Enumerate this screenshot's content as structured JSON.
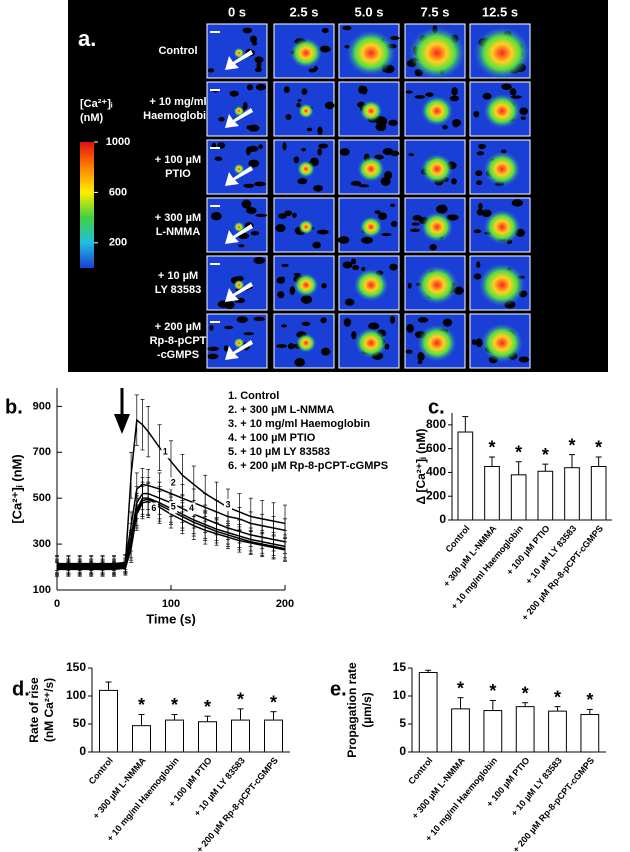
{
  "panel_a": {
    "label": "a.",
    "times": [
      "0 s",
      "2.5 s",
      "5.0 s",
      "7.5 s",
      "12.5 s"
    ],
    "rows": [
      [
        "Control"
      ],
      [
        "+ 10 mg/ml",
        "Haemoglobin"
      ],
      [
        "+ 100 µM",
        "PTIO"
      ],
      [
        "+ 300 µM",
        "L-NMMA"
      ],
      [
        "+ 10 µM",
        "LY 83583"
      ],
      [
        "+ 200 µM",
        "Rp-8-pCPT",
        "-cGMPS"
      ]
    ],
    "colorbar": {
      "title": [
        "[Ca²⁺]ᵢ",
        "(nM)"
      ],
      "lim": [
        0,
        1000
      ],
      "ticks": [
        1000,
        600,
        200
      ]
    }
  },
  "chart_data": [
    {
      "type": "line",
      "label": "b.",
      "ylabel": "[Ca²⁺]ᵢ (nM)",
      "xlabel": "Time (s)",
      "xlim": [
        0,
        200
      ],
      "xticks": [
        0,
        100,
        200
      ],
      "ylim": [
        100,
        980
      ],
      "yticks": [
        100,
        300,
        500,
        700,
        900
      ],
      "x": [
        0,
        10,
        20,
        30,
        40,
        50,
        60,
        65,
        70,
        75,
        80,
        90,
        100,
        110,
        120,
        130,
        140,
        150,
        160,
        170,
        180,
        190,
        200
      ],
      "series": [
        {
          "name": "1. Control",
          "color": "#000000",
          "values": [
            210,
            210,
            210,
            210,
            210,
            210,
            215,
            600,
            840,
            820,
            790,
            720,
            660,
            600,
            560,
            520,
            490,
            460,
            440,
            420,
            410,
            400,
            390
          ],
          "errors": [
            40,
            40,
            40,
            40,
            40,
            40,
            40,
            100,
            110,
            110,
            110,
            100,
            90,
            90,
            80,
            80,
            80,
            80,
            80,
            80,
            80,
            80,
            80
          ]
        },
        {
          "name": "2. + 300 µM L-NMMA",
          "color": "#000000",
          "values": [
            215,
            215,
            215,
            215,
            215,
            215,
            220,
            380,
            540,
            560,
            555,
            540,
            520,
            500,
            480,
            460,
            440,
            420,
            410,
            390,
            380,
            370,
            360
          ],
          "errors": [
            30,
            30,
            30,
            30,
            30,
            30,
            30,
            60,
            70,
            70,
            70,
            70,
            60,
            60,
            60,
            60,
            50,
            50,
            50,
            50,
            50,
            50,
            50
          ]
        },
        {
          "name": "3. + 10 mg/ml Haemoglobin",
          "color": "#000000",
          "values": [
            205,
            205,
            205,
            205,
            205,
            205,
            210,
            330,
            480,
            520,
            520,
            500,
            480,
            455,
            430,
            410,
            390,
            370,
            355,
            340,
            330,
            320,
            310
          ],
          "errors": [
            30,
            30,
            30,
            30,
            30,
            30,
            30,
            60,
            70,
            70,
            70,
            70,
            60,
            60,
            60,
            60,
            50,
            50,
            50,
            50,
            50,
            50,
            50
          ]
        },
        {
          "name": "4. + 100 µM PTIO",
          "color": "#000000",
          "values": [
            200,
            200,
            200,
            200,
            200,
            200,
            205,
            300,
            450,
            500,
            500,
            480,
            455,
            430,
            405,
            385,
            365,
            350,
            335,
            320,
            310,
            300,
            290
          ],
          "errors": [
            30,
            30,
            30,
            30,
            30,
            30,
            30,
            60,
            70,
            70,
            70,
            70,
            60,
            60,
            60,
            60,
            50,
            50,
            50,
            50,
            50,
            50,
            50
          ]
        },
        {
          "name": "5. + 10 µM LY 83583",
          "color": "#000000",
          "values": [
            195,
            195,
            195,
            195,
            195,
            195,
            200,
            290,
            440,
            490,
            495,
            470,
            445,
            420,
            395,
            375,
            355,
            340,
            325,
            310,
            300,
            290,
            280
          ],
          "errors": [
            30,
            30,
            30,
            30,
            30,
            30,
            30,
            60,
            70,
            70,
            70,
            70,
            60,
            60,
            60,
            60,
            50,
            50,
            50,
            50,
            50,
            50,
            50
          ]
        },
        {
          "name": "6. + 200 µM Rp-8-pCPT-cGMPS",
          "color": "#000000",
          "values": [
            190,
            190,
            190,
            190,
            190,
            190,
            195,
            280,
            430,
            480,
            485,
            460,
            430,
            405,
            380,
            360,
            345,
            330,
            315,
            305,
            295,
            285,
            275
          ],
          "errors": [
            30,
            30,
            30,
            30,
            30,
            30,
            30,
            60,
            70,
            70,
            70,
            70,
            60,
            60,
            60,
            60,
            50,
            50,
            50,
            50,
            50,
            50,
            50
          ]
        }
      ],
      "annotations": [
        {
          "text": "1",
          "x": 95,
          "y": 700
        },
        {
          "text": "2",
          "x": 102,
          "y": 565
        },
        {
          "text": "3",
          "x": 150,
          "y": 470
        },
        {
          "text": "4",
          "x": 118,
          "y": 455
        },
        {
          "text": "5",
          "x": 102,
          "y": 460
        },
        {
          "text": "6",
          "x": 85,
          "y": 455
        }
      ]
    },
    {
      "type": "bar",
      "label": "c.",
      "ylabel": "Δ [Ca²⁺]ᵢ (nM)",
      "ylim": [
        0,
        900
      ],
      "yticks": [
        0,
        200,
        400,
        600,
        800
      ],
      "color": "#ffffff",
      "categories": [
        "Control",
        "+ 300 µM L-NMMA",
        "+ 10 mg/ml Haemoglobin",
        "+ 100 µM PTIO",
        "+ 10 µM LY 83583",
        "+ 200 µM Rp-8-pCPT-cGMPS"
      ],
      "values": [
        740,
        450,
        380,
        410,
        440,
        450
      ],
      "errors": [
        130,
        80,
        110,
        60,
        110,
        80
      ],
      "significance": [
        null,
        "*",
        "*",
        "*",
        "*",
        "*"
      ]
    },
    {
      "type": "bar",
      "label": "d.",
      "ylabel": [
        "Rate of rise",
        "(nM Ca²⁺/s)"
      ],
      "ylim": [
        0,
        150
      ],
      "yticks": [
        0,
        50,
        100,
        150
      ],
      "color": "#ffffff",
      "categories": [
        "Control",
        "+ 300 µM L-NMMA",
        "+ 10 mg/ml Haemoglobin",
        "+ 100 µM PTIO",
        "+ 10 µM LY 83583",
        "+ 200 µM Rp-8-pCPT-cGMPS"
      ],
      "values": [
        110,
        47,
        57,
        54,
        57,
        57
      ],
      "errors": [
        15,
        20,
        10,
        10,
        20,
        15
      ],
      "significance": [
        null,
        "*",
        "*",
        "*",
        "*",
        "*"
      ]
    },
    {
      "type": "bar",
      "label": "e.",
      "ylabel": [
        "Propagation rate",
        "(µm/s)"
      ],
      "ylim": [
        0,
        15
      ],
      "yticks": [
        0,
        5,
        10,
        15
      ],
      "color": "#ffffff",
      "categories": [
        "Control",
        "+ 300 µM L-NMMA",
        "+ 10 mg/ml Haemoglobin",
        "+ 100 µM PTIO",
        "+ 10 µM LY 83583",
        "+ 200 µM Rp-8-pCPT-cGMPS"
      ],
      "values": [
        14.2,
        7.7,
        7.4,
        8.1,
        7.3,
        6.7
      ],
      "errors": [
        0.4,
        2,
        1.8,
        0.7,
        0.8,
        0.9
      ],
      "significance": [
        null,
        "*",
        "*",
        "*",
        "*",
        "*"
      ]
    }
  ]
}
